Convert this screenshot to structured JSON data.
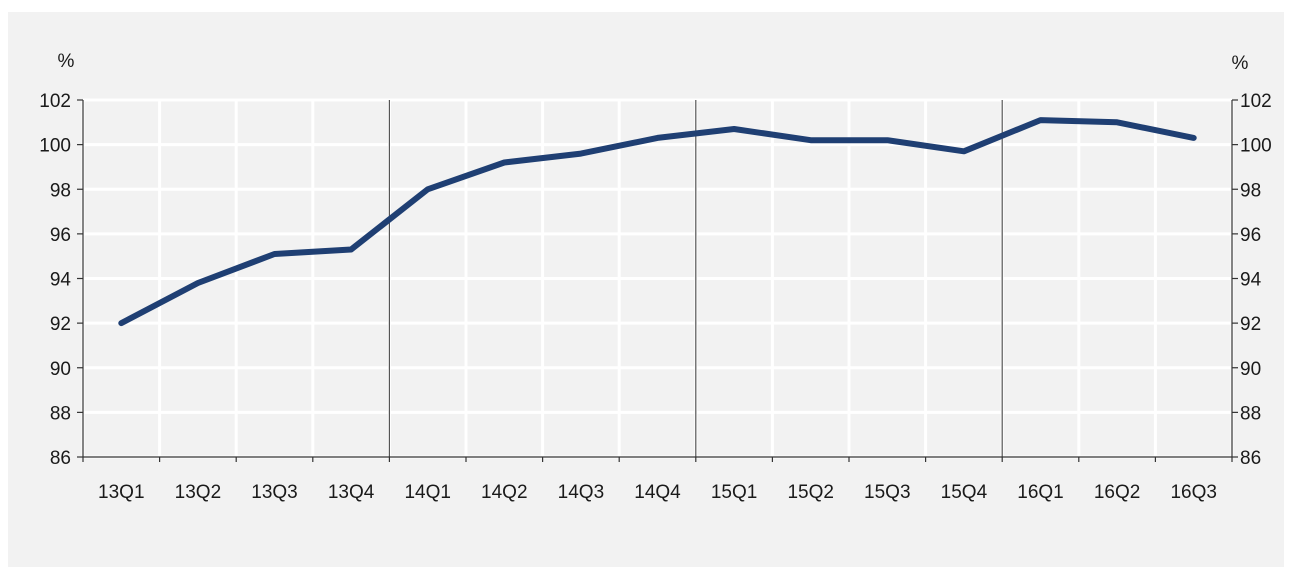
{
  "chart_data": {
    "type": "line",
    "title": "",
    "xlabel": "",
    "ylabel": "",
    "unit_left": "%",
    "unit_right": "%",
    "categories": [
      "13Q1",
      "13Q2",
      "13Q3",
      "13Q4",
      "14Q1",
      "14Q2",
      "14Q3",
      "14Q4",
      "15Q1",
      "15Q2",
      "15Q3",
      "15Q4",
      "16Q1",
      "16Q2",
      "16Q3"
    ],
    "series": [
      {
        "color": "#1f3f73",
        "values": [
          92.0,
          93.8,
          95.1,
          95.3,
          98.0,
          99.2,
          99.6,
          100.3,
          100.7,
          100.2,
          100.2,
          99.7,
          101.1,
          101.0,
          100.3
        ]
      }
    ],
    "ylim": [
      86,
      102
    ],
    "yticks": [
      86,
      88,
      90,
      92,
      94,
      96,
      98,
      100,
      102
    ],
    "year_separators_after": [
      "13Q4",
      "14Q4",
      "15Q4"
    ],
    "grid": true,
    "legend": "none"
  }
}
